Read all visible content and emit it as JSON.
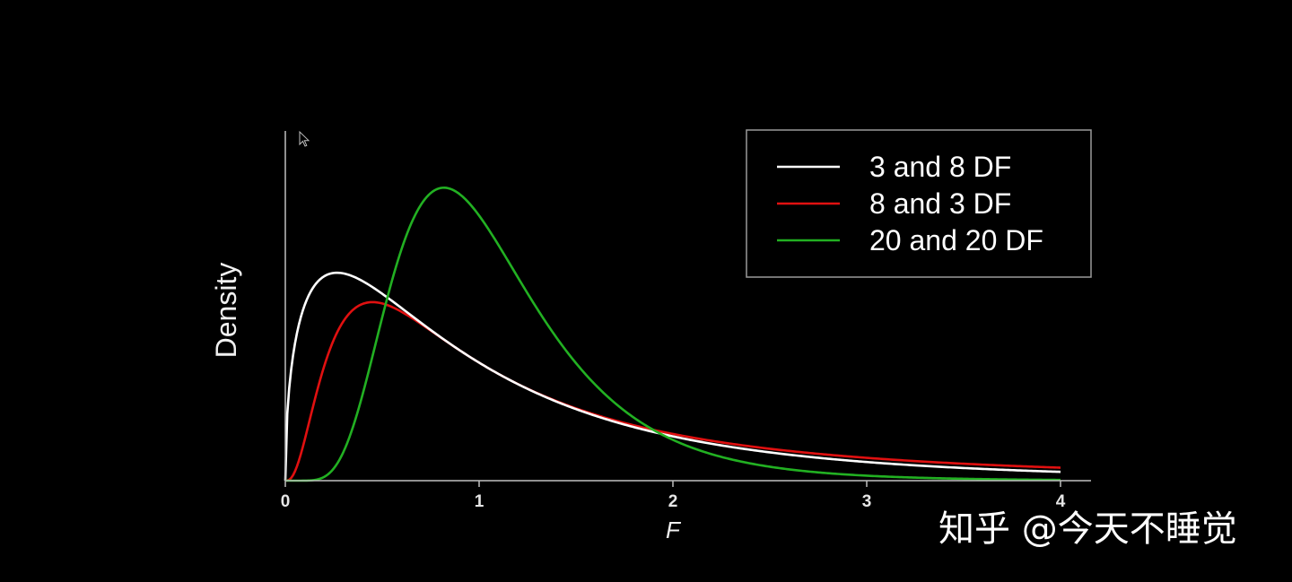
{
  "chart_data": {
    "type": "line",
    "title": "",
    "xlabel": "F",
    "ylabel": "Density",
    "xlim": [
      0,
      4
    ],
    "xticks": [
      "0",
      "1",
      "2",
      "3",
      "4"
    ],
    "grid": false,
    "legend_position": "top-right",
    "series": [
      {
        "name": "3 and 8 DF",
        "df1": 3,
        "df2": 8,
        "color": "#ffffff",
        "x": [
          0,
          0.1,
          0.2,
          0.27,
          0.4,
          0.6,
          0.8,
          1.0,
          1.2,
          1.5,
          2.0,
          2.5,
          3.0,
          3.5,
          4.0
        ],
        "y": [
          0,
          0.563,
          0.672,
          0.682,
          0.663,
          0.581,
          0.489,
          0.404,
          0.332,
          0.248,
          0.152,
          0.095,
          0.061,
          0.04,
          0.027
        ]
      },
      {
        "name": "8 and 3 DF",
        "df1": 8,
        "df2": 3,
        "color": "#e01010",
        "x": [
          0,
          0.1,
          0.2,
          0.3,
          0.44,
          0.6,
          0.8,
          1.0,
          1.2,
          1.5,
          2.0,
          2.5,
          3.0,
          3.5,
          4.0
        ],
        "y": [
          0,
          0.089,
          0.349,
          0.524,
          0.593,
          0.557,
          0.48,
          0.405,
          0.34,
          0.264,
          0.174,
          0.12,
          0.085,
          0.062,
          0.046
        ]
      },
      {
        "name": "20 and 20 DF",
        "df1": 20,
        "df2": 20,
        "color": "#22b022",
        "x": [
          0,
          0.2,
          0.4,
          0.6,
          0.82,
          1.0,
          1.2,
          1.5,
          2.0,
          2.5,
          3.0,
          3.5,
          4.0
        ],
        "y": [
          0,
          0.003,
          0.218,
          0.828,
          1.091,
          0.877,
          0.554,
          0.243,
          0.058,
          0.014,
          0.004,
          0.001,
          0.0003
        ]
      }
    ]
  },
  "watermark": {
    "text": "知乎 @今天不睡觉"
  }
}
